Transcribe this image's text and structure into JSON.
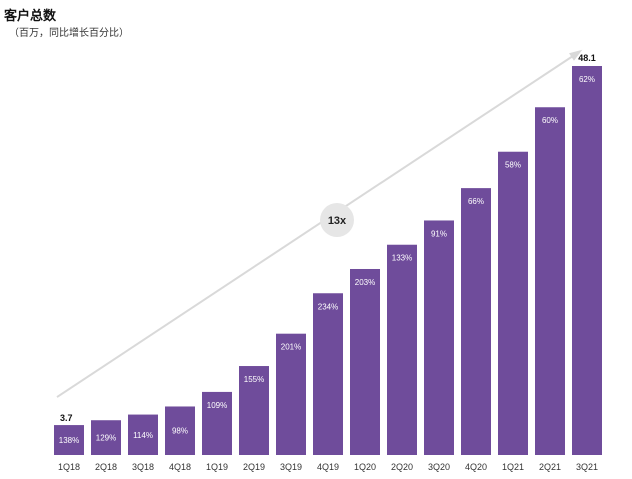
{
  "chart_data": {
    "type": "bar",
    "title": "客户总数",
    "subtitle": "（百万，同比增长百分比）",
    "categories": [
      "1Q18",
      "2Q18",
      "3Q18",
      "4Q18",
      "1Q19",
      "2Q19",
      "3Q19",
      "4Q19",
      "1Q20",
      "2Q20",
      "3Q20",
      "4Q20",
      "1Q21",
      "2Q21",
      "3Q21"
    ],
    "values": [
      3.7,
      4.3,
      5.0,
      6.0,
      7.8,
      11.0,
      15.0,
      20.0,
      23.0,
      26.0,
      29.0,
      33.0,
      37.5,
      43.0,
      48.1
    ],
    "growth_labels": [
      "138%",
      "129%",
      "114%",
      "98%",
      "109%",
      "155%",
      "201%",
      "234%",
      "203%",
      "133%",
      "91%",
      "66%",
      "58%",
      "60%",
      "62%"
    ],
    "value_labels": {
      "first": "3.7",
      "last": "48.1"
    },
    "annotation": {
      "label": "13x"
    },
    "bar_color": "#6f4c9b",
    "arrow_color": "#d9d9d9",
    "grid": false,
    "ylim": [
      0,
      50
    ]
  }
}
